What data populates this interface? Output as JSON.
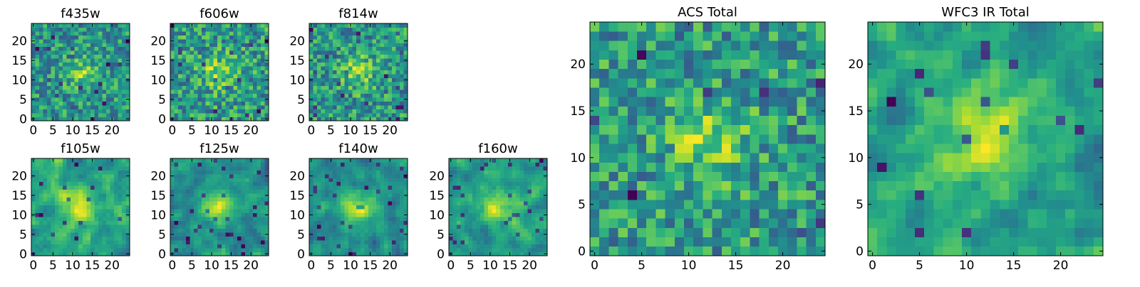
{
  "chart_data": [
    {
      "type": "heatmap",
      "title": "f435w",
      "x_ticks": [
        0,
        5,
        10,
        15,
        20
      ],
      "y_ticks": [
        0,
        5,
        10,
        15,
        20
      ],
      "xlim": [
        -0.5,
        24.5
      ],
      "ylim": [
        -0.5,
        24.5
      ],
      "grid": "off",
      "colormap": "viridis",
      "rows": 25,
      "cols": 25,
      "seed": 11,
      "structure": "noisy"
    },
    {
      "type": "heatmap",
      "title": "f606w",
      "x_ticks": [
        0,
        5,
        10,
        15,
        20
      ],
      "y_ticks": [
        0,
        5,
        10,
        15,
        20
      ],
      "xlim": [
        -0.5,
        24.5
      ],
      "ylim": [
        -0.5,
        24.5
      ],
      "grid": "off",
      "colormap": "viridis",
      "rows": 25,
      "cols": 25,
      "seed": 23,
      "structure": "noisy"
    },
    {
      "type": "heatmap",
      "title": "f814w",
      "x_ticks": [
        0,
        5,
        10,
        15,
        20
      ],
      "y_ticks": [
        0,
        5,
        10,
        15,
        20
      ],
      "xlim": [
        -0.5,
        24.5
      ],
      "ylim": [
        -0.5,
        24.5
      ],
      "grid": "off",
      "colormap": "viridis",
      "rows": 25,
      "cols": 25,
      "seed": 37,
      "structure": "noisy"
    },
    {
      "type": "heatmap",
      "title": "f105w",
      "x_ticks": [
        0,
        5,
        10,
        15,
        20
      ],
      "y_ticks": [
        0,
        5,
        10,
        15,
        20
      ],
      "xlim": [
        -0.5,
        24.5
      ],
      "ylim": [
        -0.5,
        24.5
      ],
      "grid": "off",
      "colormap": "viridis",
      "rows": 25,
      "cols": 25,
      "seed": 41,
      "structure": "smooth"
    },
    {
      "type": "heatmap",
      "title": "f125w",
      "x_ticks": [
        0,
        5,
        10,
        15,
        20
      ],
      "y_ticks": [
        0,
        5,
        10,
        15,
        20
      ],
      "xlim": [
        -0.5,
        24.5
      ],
      "ylim": [
        -0.5,
        24.5
      ],
      "grid": "off",
      "colormap": "viridis",
      "rows": 25,
      "cols": 25,
      "seed": 53,
      "structure": "smooth"
    },
    {
      "type": "heatmap",
      "title": "f140w",
      "x_ticks": [
        0,
        5,
        10,
        15,
        20
      ],
      "y_ticks": [
        0,
        5,
        10,
        15,
        20
      ],
      "xlim": [
        -0.5,
        24.5
      ],
      "ylim": [
        -0.5,
        24.5
      ],
      "grid": "off",
      "colormap": "viridis",
      "rows": 25,
      "cols": 25,
      "seed": 67,
      "structure": "smooth"
    },
    {
      "type": "heatmap",
      "title": "f160w",
      "x_ticks": [
        0,
        5,
        10,
        15,
        20
      ],
      "y_ticks": [
        0,
        5,
        10,
        15,
        20
      ],
      "xlim": [
        -0.5,
        24.5
      ],
      "ylim": [
        -0.5,
        24.5
      ],
      "grid": "off",
      "colormap": "viridis",
      "rows": 25,
      "cols": 25,
      "seed": 79,
      "structure": "smooth"
    },
    {
      "type": "heatmap",
      "title": "ACS Total",
      "x_ticks": [
        0,
        5,
        10,
        15,
        20
      ],
      "y_ticks": [
        0,
        5,
        10,
        15,
        20
      ],
      "xlim": [
        -0.5,
        24.5
      ],
      "ylim": [
        -0.5,
        24.5
      ],
      "grid": "off",
      "colormap": "viridis",
      "rows": 25,
      "cols": 25,
      "seed": 97,
      "structure": "noisy"
    },
    {
      "type": "heatmap",
      "title": "WFC3 IR Total",
      "x_ticks": [
        0,
        5,
        10,
        15,
        20
      ],
      "y_ticks": [
        0,
        5,
        10,
        15,
        20
      ],
      "xlim": [
        -0.5,
        24.5
      ],
      "ylim": [
        -0.5,
        24.5
      ],
      "grid": "off",
      "colormap": "viridis",
      "rows": 25,
      "cols": 25,
      "seed": 113,
      "structure": "smooth"
    }
  ]
}
